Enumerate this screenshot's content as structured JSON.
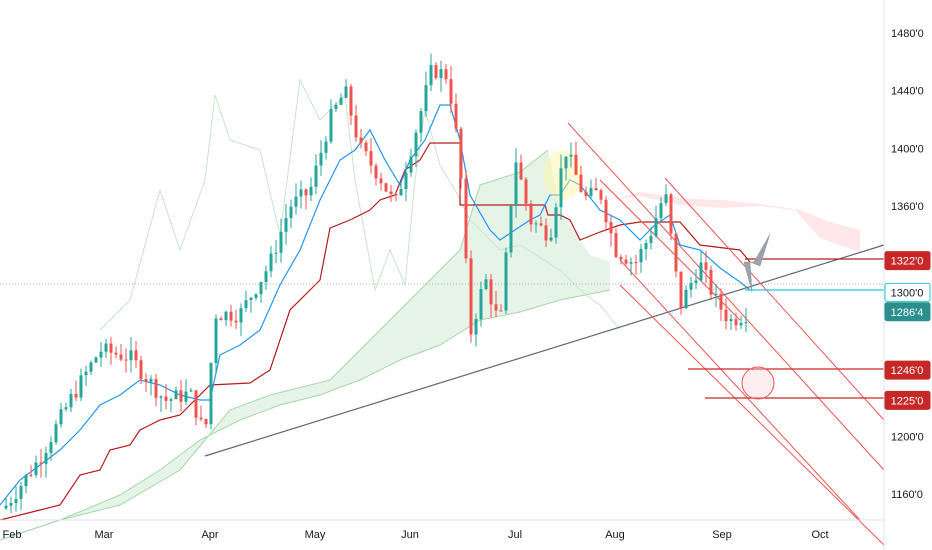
{
  "chart_data": {
    "type": "candlestick",
    "instrument_unit": "cents/bushel (futures price)",
    "x_axis": {
      "labels": [
        "Feb",
        "Mar",
        "Apr",
        "May",
        "Jun",
        "Jul",
        "Aug",
        "Sep",
        "Oct"
      ]
    },
    "y_axis": {
      "range": [
        1140,
        1490
      ],
      "ticks": [
        {
          "value": 1160,
          "label": "1160'0"
        },
        {
          "value": 1200,
          "label": "1200'0"
        },
        {
          "value": 1286,
          "label": "1286'4"
        },
        {
          "value": 1360,
          "label": "1360'0"
        },
        {
          "value": 1400,
          "label": "1400'0"
        },
        {
          "value": 1440,
          "label": "1440'0"
        },
        {
          "value": 1480,
          "label": "1480'0"
        }
      ]
    },
    "price_tags": [
      {
        "value": 1322,
        "label": "1322'0",
        "color": "#c62828",
        "style": "filled"
      },
      {
        "value": 1300,
        "label": "1300'0",
        "color": "#26c6da",
        "style": "outline"
      },
      {
        "value": 1286.5,
        "label": "1286'4",
        "color": "#2a8f8d",
        "style": "filled"
      },
      {
        "value": 1246,
        "label": "1246'0",
        "color": "#c62828",
        "style": "filled"
      },
      {
        "value": 1225,
        "label": "1225'0",
        "color": "#c62828",
        "style": "filled"
      }
    ],
    "candles_ohlc_sampled": [
      {
        "month": "Feb",
        "open": 1150,
        "high": 1165,
        "low": 1142,
        "close": 1160
      },
      {
        "month": "Mar",
        "open": 1220,
        "high": 1262,
        "low": 1205,
        "close": 1250
      },
      {
        "month": "Apr",
        "open": 1198,
        "high": 1290,
        "low": 1190,
        "close": 1280
      },
      {
        "month": "May",
        "open": 1390,
        "high": 1450,
        "low": 1370,
        "close": 1430
      },
      {
        "month": "Jun",
        "open": 1460,
        "high": 1478,
        "low": 1380,
        "close": 1390
      },
      {
        "month": "Jul",
        "open": 1300,
        "high": 1400,
        "low": 1260,
        "close": 1390
      },
      {
        "month": "Aug",
        "open": 1370,
        "high": 1378,
        "low": 1275,
        "close": 1300
      },
      {
        "month": "Sep",
        "open": 1290,
        "high": 1300,
        "low": 1264,
        "close": 1286.5
      }
    ],
    "colors": {
      "up": "#26a69a",
      "down": "#ef5350",
      "tenkan": "#2196f3",
      "kijun": "#b71c1c",
      "cloud_bull": "#c8e6c9",
      "cloud_bear": "#ffcdd2",
      "trend": "#5d6577",
      "channel": "#ef5350"
    },
    "grid": false
  }
}
